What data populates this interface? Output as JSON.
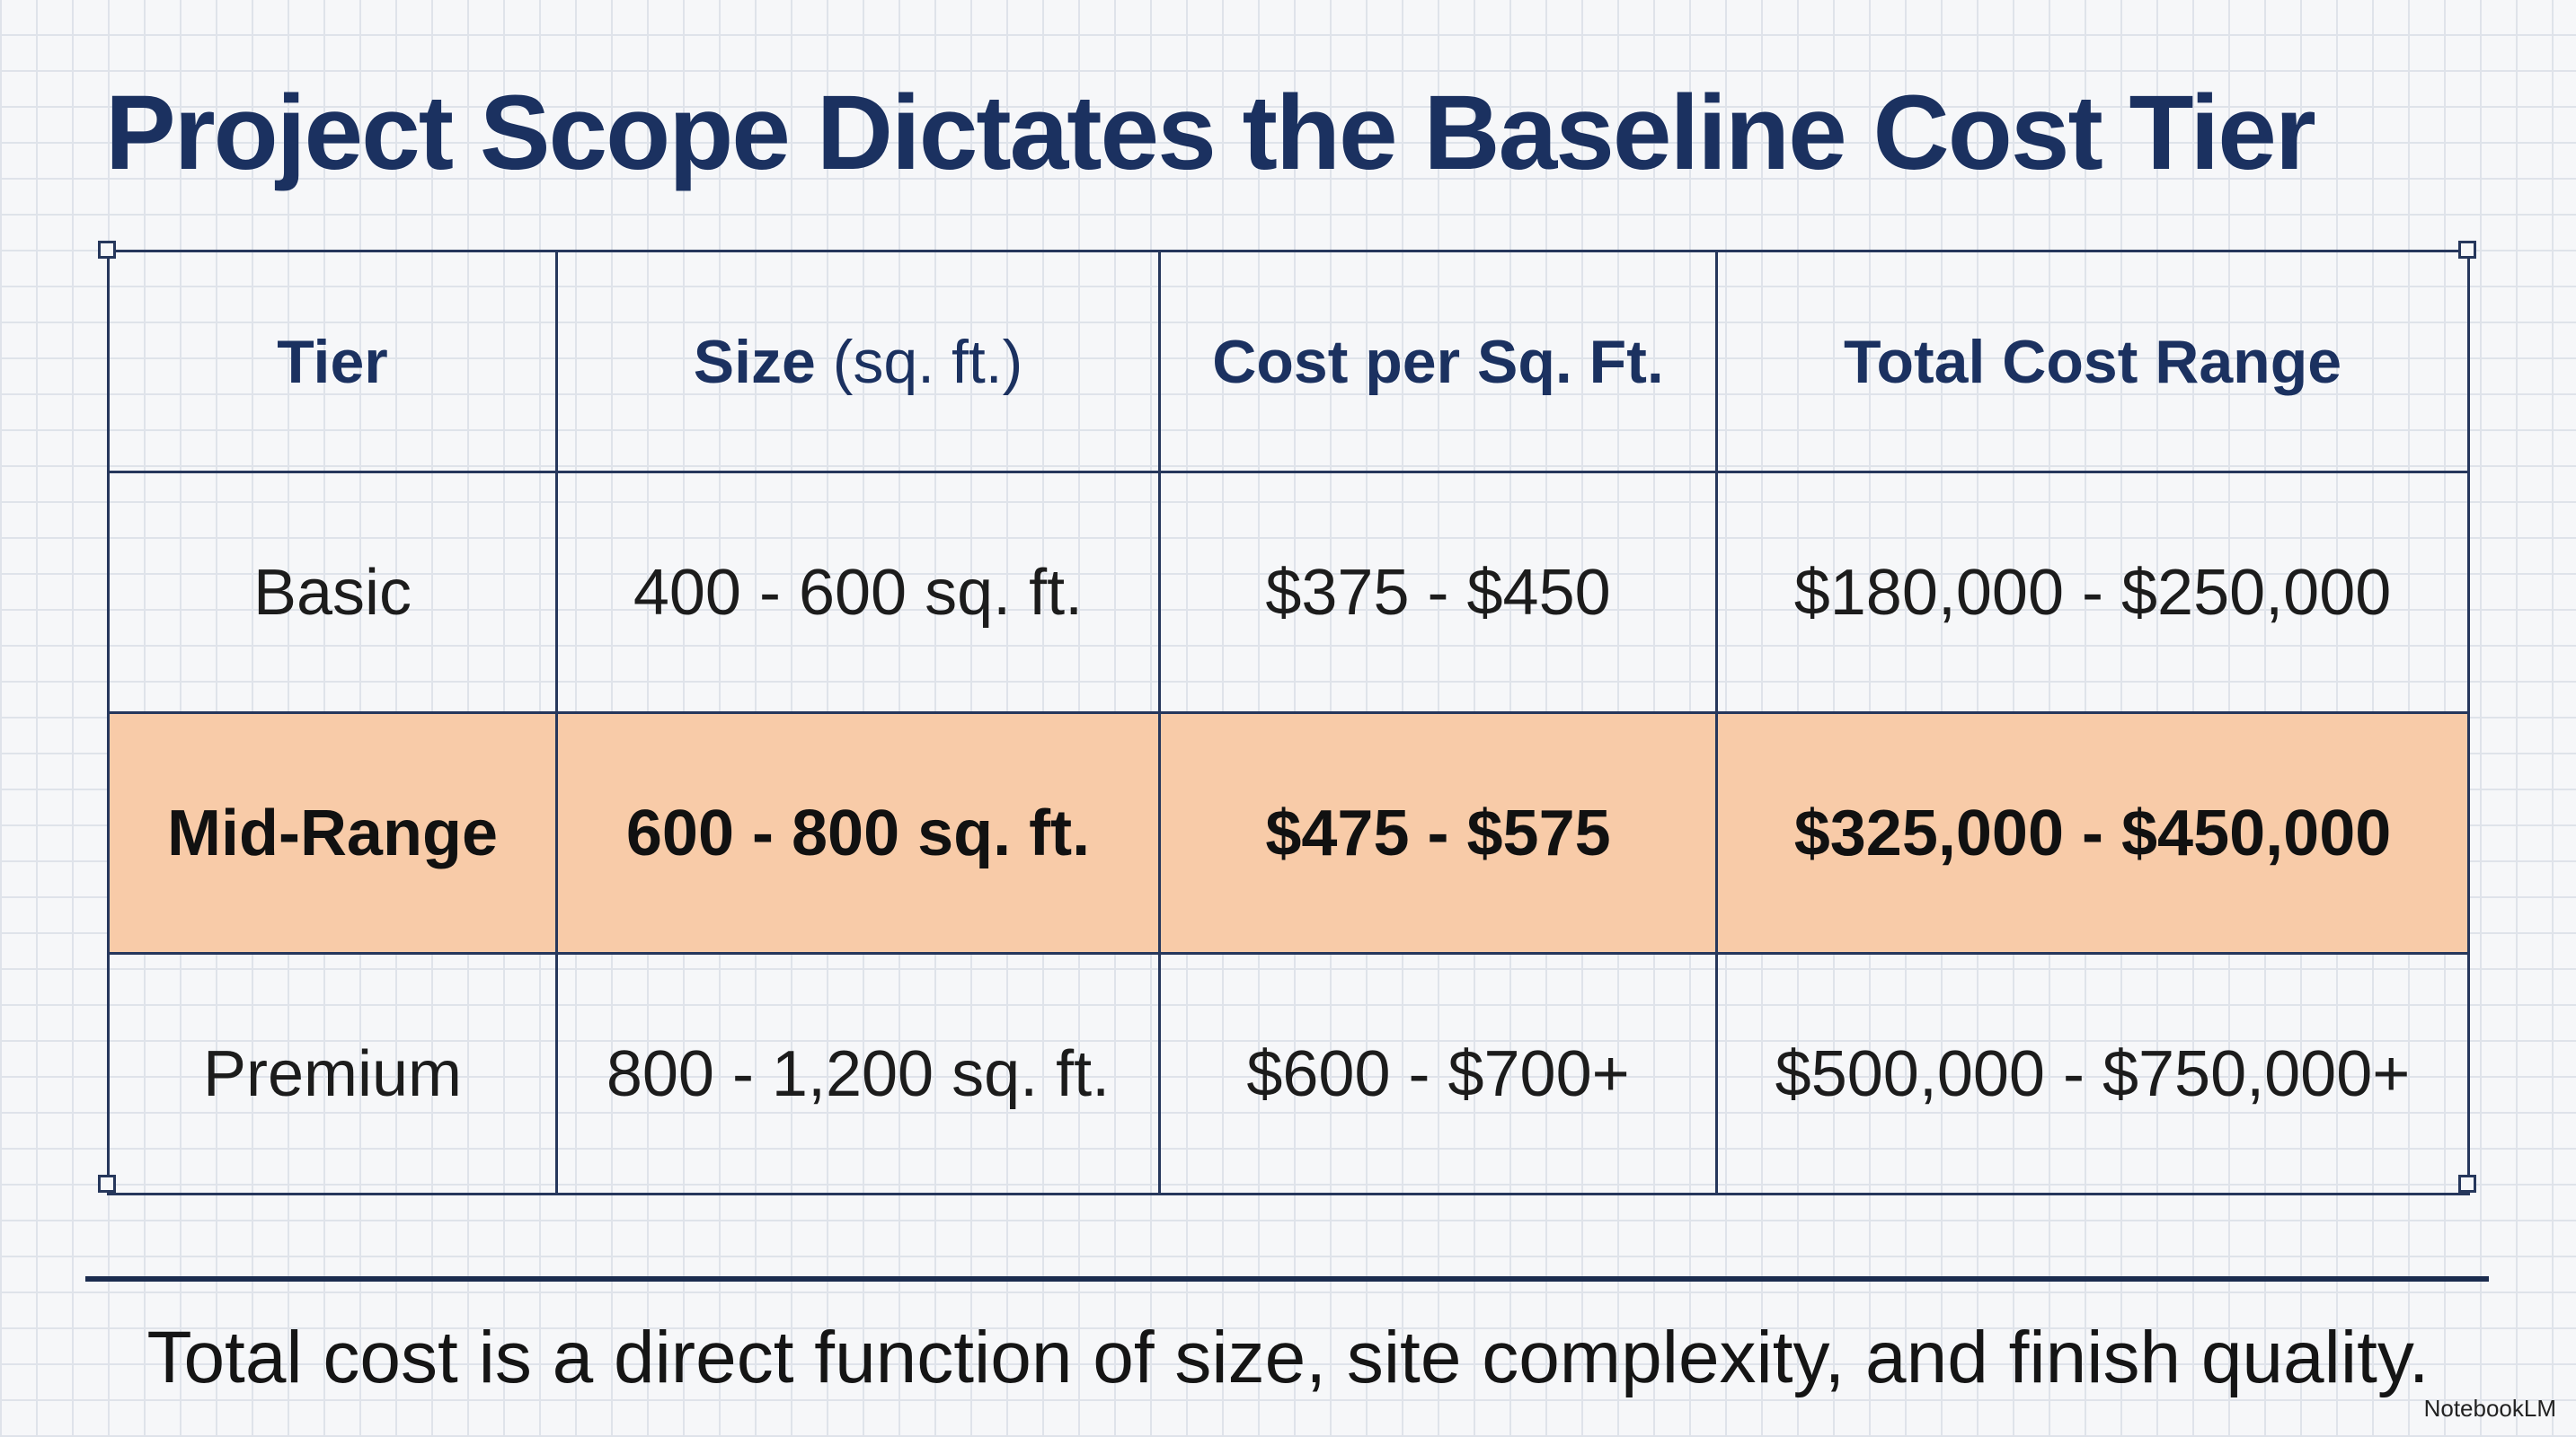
{
  "title": "Project Scope Dictates the Baseline Cost Tier",
  "table": {
    "header": [
      [
        "Tier"
      ],
      [
        "Size",
        "(sq. ft.)"
      ],
      [
        "Cost per Sq. Ft."
      ],
      [
        "Total Cost Range"
      ]
    ],
    "rows": [
      [
        "Basic",
        "400 - 600 sq. ft.",
        "$375 - $450",
        "$180,000 - $250,000"
      ],
      [
        "Mid-Range",
        "600 - 800 sq. ft.",
        "$475 - $575",
        "$325,000 - $450,000"
      ],
      [
        "Premium",
        "800 - 1,200 sq. ft.",
        "$600 - $700+",
        "$500,000 - $750,000+"
      ]
    ],
    "highlighted_row": 1
  },
  "footer": "Total cost is a direct function of size, site complexity, and finish quality.",
  "brand": "NotebookLM"
}
